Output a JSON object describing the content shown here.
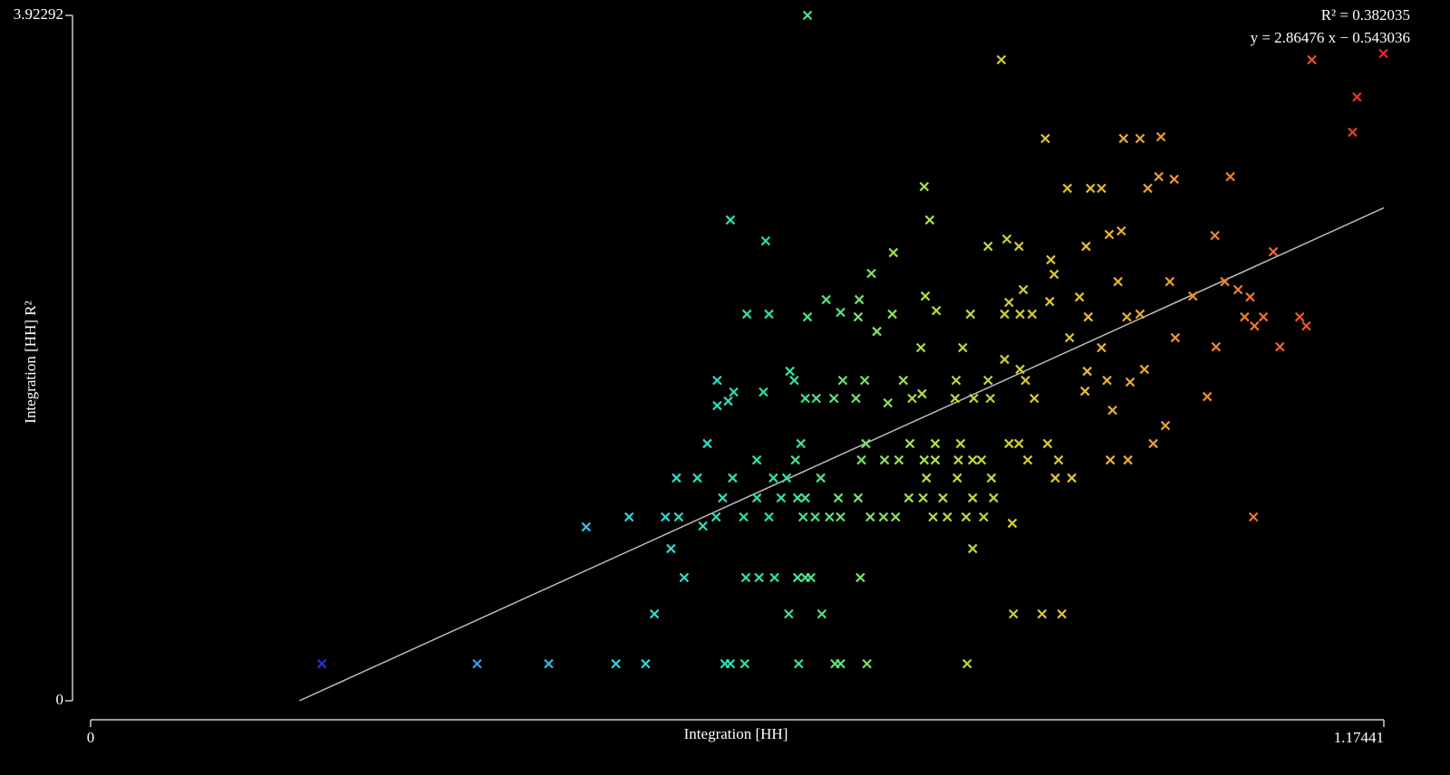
{
  "chart_data": {
    "type": "scatter",
    "x_label": "Integration [HH]",
    "y_label": "Integration [HH] R²",
    "xlim": [
      0,
      1.17441
    ],
    "ylim": [
      0,
      3.92292
    ],
    "xticks": [
      0,
      1.17441
    ],
    "yticks": [
      0,
      3.92292
    ],
    "fit": {
      "r2_label": "R² = 0.382035",
      "equation": "y = 2.86476 x − 0.543036",
      "r2": 0.382035,
      "slope": 2.86476,
      "intercept": -0.543036,
      "color": "#bbbbbb"
    },
    "color_scale": [
      "#3030e0",
      "#30a0f0",
      "#30d8e0",
      "#30e0a0",
      "#b0e040",
      "#e8c030",
      "#f08030",
      "#e82828"
    ],
    "x": [
      0.21,
      0.351,
      0.416,
      0.477,
      0.504,
      0.576,
      0.581,
      0.594,
      0.643,
      0.676,
      0.681,
      0.705,
      0.796,
      0.512,
      0.634,
      0.664,
      0.838,
      0.864,
      0.882,
      0.539,
      0.595,
      0.607,
      0.621,
      0.642,
      0.649,
      0.654,
      0.699,
      0.527,
      0.801,
      0.45,
      0.489,
      0.522,
      0.534,
      0.556,
      0.568,
      0.593,
      0.616,
      0.647,
      0.658,
      0.671,
      0.681,
      0.708,
      0.72,
      0.731,
      0.765,
      0.778,
      0.795,
      0.811,
      0.837,
      1.056,
      0.574,
      0.605,
      0.627,
      0.642,
      0.649,
      0.679,
      0.697,
      0.743,
      0.756,
      0.774,
      0.801,
      0.82,
      0.532,
      0.551,
      0.583,
      0.62,
      0.632,
      0.663,
      0.759,
      0.787,
      0.818,
      0.876,
      0.891,
      0.605,
      0.64,
      0.7,
      0.721,
      0.734,
      0.757,
      0.767,
      0.788,
      0.801,
      0.809,
      0.851,
      0.879,
      0.926,
      0.942,
      0.56,
      0.645,
      0.704,
      0.744,
      0.767,
      0.79,
      0.834,
      0.843,
      0.869,
      0.965,
      0.569,
      0.579,
      0.584,
      0.611,
      0.649,
      0.659,
      0.675,
      0.695,
      0.724,
      0.746,
      0.755,
      0.785,
      0.802,
      0.817,
      0.857,
      0.903,
      0.928,
      0.976,
      1.014,
      0.569,
      0.635,
      0.639,
      0.683,
      0.703,
      0.738,
      0.786,
      0.815,
      0.849,
      0.905,
      0.923,
      0.944,
      0.957,
      0.754,
      0.792,
      0.83,
      0.844,
      0.918,
      0.985,
      1.022,
      1.08,
      0.596,
      0.616,
      0.651,
      0.681,
      0.697,
      0.714,
      0.728,
      0.768,
      0.799,
      0.83,
      0.844,
      0.855,
      0.889,
      0.906,
      0.941,
      0.953,
      1.048,
      1.065,
      1.057,
      1.098,
      1.104,
      0.668,
      0.698,
      0.758,
      0.834,
      0.847,
      0.871,
      0.898,
      0.933,
      0.98,
      1.001,
      1.03,
      1.042,
      1.053,
      0.729,
      0.815,
      0.832,
      0.843,
      0.872,
      0.904,
      0.925,
      0.936,
      1.021,
      1.074,
      0.709,
      0.875,
      0.581,
      0.613,
      0.762,
      0.757,
      0.887,
      0.908,
      0.918,
      0.96,
      0.97,
      0.984,
      1.035,
      0.867,
      0.938,
      0.953,
      0.972,
      1.146,
      1.15,
      0.651,
      0.827,
      1.109,
      1.174
    ],
    "values": [
      0.212,
      0.212,
      0.212,
      0.212,
      0.212,
      0.212,
      0.212,
      0.212,
      0.212,
      0.212,
      0.212,
      0.212,
      0.212,
      0.497,
      0.497,
      0.497,
      0.497,
      0.497,
      0.497,
      0.705,
      0.705,
      0.705,
      0.705,
      0.705,
      0.705,
      0.705,
      0.705,
      0.871,
      0.871,
      0.995,
      1.052,
      1.052,
      1.052,
      1.0,
      1.052,
      1.052,
      1.052,
      1.052,
      1.052,
      1.052,
      1.052,
      1.052,
      1.052,
      1.052,
      1.052,
      1.052,
      1.052,
      1.052,
      1.016,
      1.052,
      1.161,
      1.161,
      1.161,
      1.161,
      1.161,
      1.161,
      1.161,
      1.161,
      1.161,
      1.161,
      1.161,
      1.161,
      1.275,
      1.275,
      1.275,
      1.275,
      1.275,
      1.275,
      1.275,
      1.275,
      1.275,
      1.275,
      1.275,
      1.378,
      1.378,
      1.378,
      1.378,
      1.378,
      1.378,
      1.378,
      1.378,
      1.378,
      1.378,
      1.378,
      1.378,
      1.378,
      1.378,
      1.472,
      1.472,
      1.472,
      1.472,
      1.472,
      1.472,
      1.472,
      1.472,
      1.472,
      1.472,
      1.689,
      1.715,
      1.767,
      1.767,
      1.731,
      1.731,
      1.731,
      1.731,
      1.705,
      1.731,
      1.757,
      1.731,
      1.731,
      1.731,
      1.731,
      1.772,
      1.663,
      1.575,
      1.741,
      1.834,
      1.886,
      1.834,
      1.834,
      1.834,
      1.834,
      1.834,
      1.834,
      1.834,
      1.886,
      1.834,
      1.824,
      1.897,
      2.021,
      2.021,
      1.954,
      1.897,
      2.021,
      2.078,
      2.026,
      2.026,
      2.213,
      2.213,
      2.197,
      2.223,
      2.197,
      2.114,
      2.213,
      2.233,
      2.213,
      2.213,
      2.213,
      2.213,
      2.078,
      2.197,
      2.197,
      2.213,
      2.197,
      2.197,
      2.145,
      2.197,
      2.145,
      2.296,
      2.296,
      2.316,
      2.28,
      2.353,
      2.285,
      2.311,
      2.399,
      2.399,
      2.316,
      2.399,
      2.353,
      2.311,
      2.565,
      2.601,
      2.643,
      2.601,
      2.524,
      2.601,
      2.669,
      2.689,
      2.663,
      2.57,
      2.446,
      2.441,
      2.752,
      2.632,
      2.752,
      2.943,
      2.933,
      2.933,
      2.933,
      2.933,
      3.0,
      2.985,
      3.0,
      3.218,
      3.218,
      3.218,
      3.228,
      3.254,
      3.456,
      3.923,
      3.669,
      3.669,
      3.705
    ]
  }
}
